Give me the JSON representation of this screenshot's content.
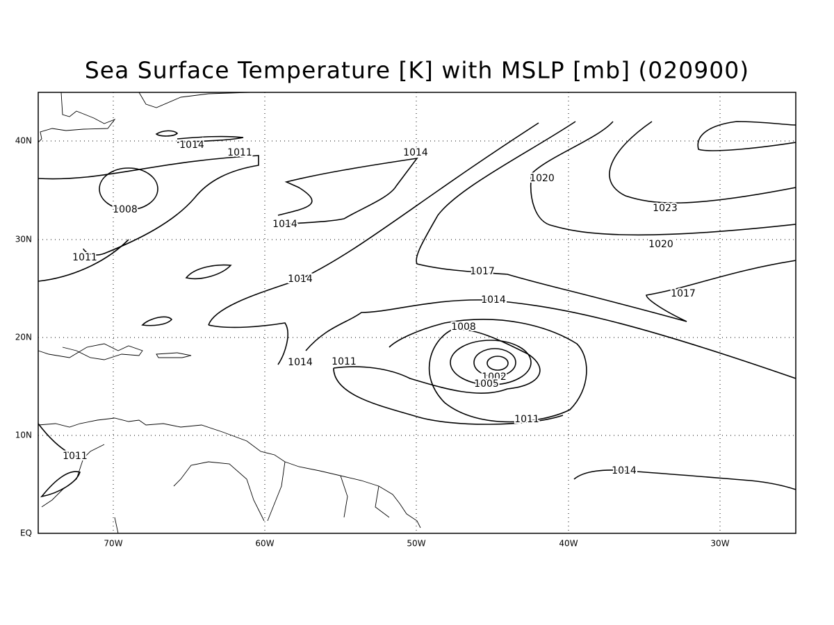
{
  "title": "Sea Surface Temperature [K] with MSLP [mb] (020900)",
  "x_axis": {
    "labels": [
      "70W",
      "60W",
      "50W",
      "40W",
      "30W"
    ]
  },
  "y_axis": {
    "labels": [
      "EQ",
      "10N",
      "20N",
      "30N",
      "40N"
    ]
  },
  "contour_labels": [
    "1014",
    "1011",
    "1008",
    "1011",
    "1014",
    "1014",
    "1014",
    "1020",
    "1023",
    "1020",
    "1017",
    "1014",
    "1017",
    "1008",
    "1014",
    "1011",
    "1002",
    "1005",
    "1011",
    "1011",
    "1014"
  ]
}
